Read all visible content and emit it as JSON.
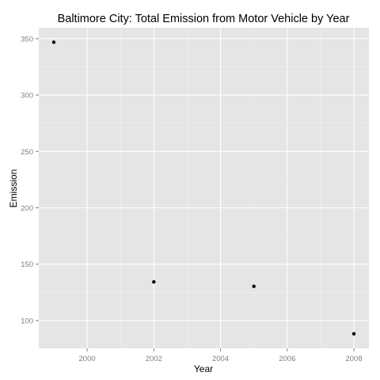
{
  "chart_data": {
    "type": "scatter",
    "title": "Baltimore City: Total Emission from Motor Vehicle by Year",
    "xlabel": "Year",
    "ylabel": "Emission",
    "x": [
      1999,
      2002,
      2005,
      2008
    ],
    "y": [
      346.8,
      134.3,
      130.4,
      88.3
    ],
    "xlim": [
      1998.55,
      2008.45
    ],
    "ylim": [
      75.4,
      359.7
    ],
    "xticks": [
      2000,
      2002,
      2004,
      2006,
      2008
    ],
    "xtick_labels": [
      "2000",
      "2002",
      "2004",
      "2006",
      "2008"
    ],
    "yticks": [
      100,
      150,
      200,
      250,
      300,
      350
    ],
    "ytick_labels": [
      "100",
      "150",
      "200",
      "250",
      "300",
      "350"
    ],
    "grid": true,
    "legend": "none",
    "colors": {
      "panel_background": "#e5e5e5",
      "grid_major": "#ffffff",
      "grid_minor": "#f2f2f2",
      "point": "#000000",
      "tick_label": "#7f7f7f"
    }
  }
}
